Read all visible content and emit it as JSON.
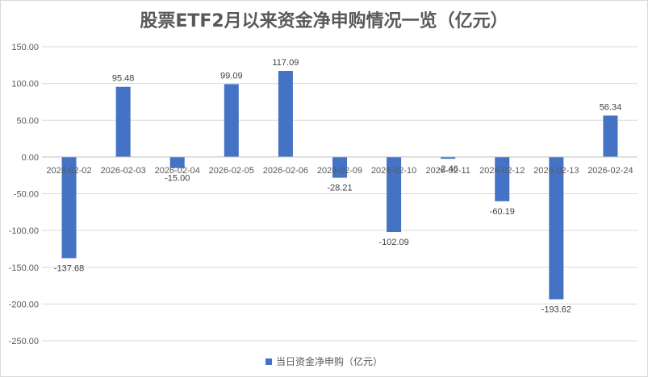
{
  "colors": {
    "bar": "#4472c4",
    "grid": "#d9d9d9",
    "axis": "#bfbfbf",
    "text": "#595959"
  },
  "chart_data": {
    "type": "bar",
    "title": "股票ETF2月以来资金净申购情况一览（亿元）",
    "categories": [
      "2026-02-02",
      "2026-02-03",
      "2026-02-04",
      "2026-02-05",
      "2026-02-06",
      "2026-02-09",
      "2026-02-10",
      "2026-02-11",
      "2026-02-12",
      "2026-02-13",
      "2026-02-24"
    ],
    "series": [
      {
        "name": "当日资金净申购（亿元）",
        "values": [
          -137.68,
          95.48,
          -15.0,
          99.09,
          117.09,
          -28.21,
          -102.09,
          -2.46,
          -60.19,
          -193.62,
          56.34
        ],
        "labels": [
          "-137.68",
          "95.48",
          "-15.00",
          "99.09",
          "117.09",
          "-28.21",
          "-102.09",
          "-2.46",
          "-60.19",
          "-193.62",
          "56.34"
        ]
      }
    ],
    "yticks": [
      "150.00",
      "100.00",
      "50.00",
      "0.00",
      "-50.00",
      "-100.00",
      "-150.00",
      "-200.00",
      "-250.00"
    ],
    "ylim": [
      -250,
      150
    ],
    "grid": true,
    "legend": "bottom"
  }
}
